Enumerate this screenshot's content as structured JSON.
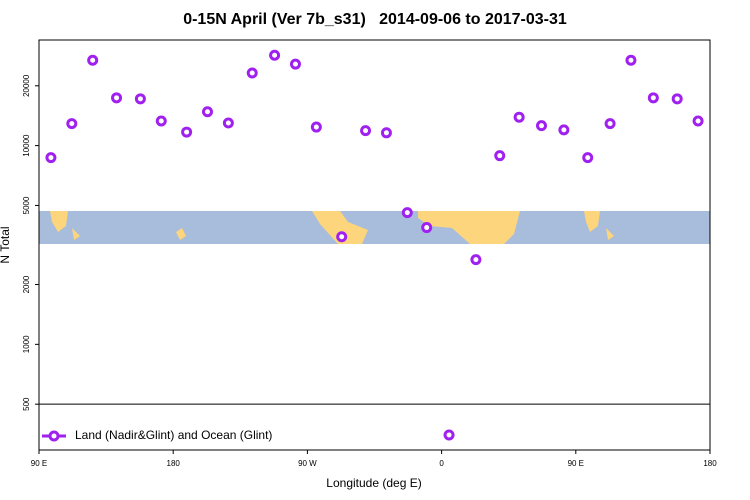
{
  "chart_data": {
    "type": "scatter",
    "title": "0-15N April (Ver 7b_s31)   2014-09-06 to 2017-03-31",
    "x_label": "Longitude (deg E)",
    "y_label": "N Total",
    "log_y": true,
    "xlim": [
      90,
      540
    ],
    "ylim": [
      294,
      34000
    ],
    "xticks": [
      {
        "value": 90,
        "label": "90 E"
      },
      180,
      {
        "value": 270,
        "label": "90 W"
      },
      {
        "value": 360,
        "label": "0"
      },
      {
        "value": 450,
        "label": "90 E"
      },
      {
        "value": 540,
        "label": "180"
      }
    ],
    "yticks": [
      500,
      1000,
      2000,
      5000,
      10000,
      20000
    ],
    "legend_position": "bottom-left",
    "series": [
      {
        "name": "Land (Nadir&Glint) and Ocean (Glint)",
        "color": "#a020f0",
        "x": [
          98,
          112,
          126,
          142,
          158,
          172,
          189,
          203,
          217,
          233,
          248,
          262,
          276,
          293,
          309,
          323,
          337,
          350,
          365,
          383,
          399,
          412,
          427,
          442,
          458,
          473,
          487,
          502,
          518,
          532
        ],
        "values": [
          8700,
          12900,
          26900,
          17400,
          17200,
          13300,
          11700,
          14800,
          13000,
          23200,
          28500,
          25700,
          12400,
          3480,
          11900,
          11600,
          4600,
          3870,
          350,
          2670,
          8900,
          13900,
          12600,
          12000,
          8700,
          12900,
          26900,
          17400,
          17200,
          13300
        ]
      }
    ]
  }
}
